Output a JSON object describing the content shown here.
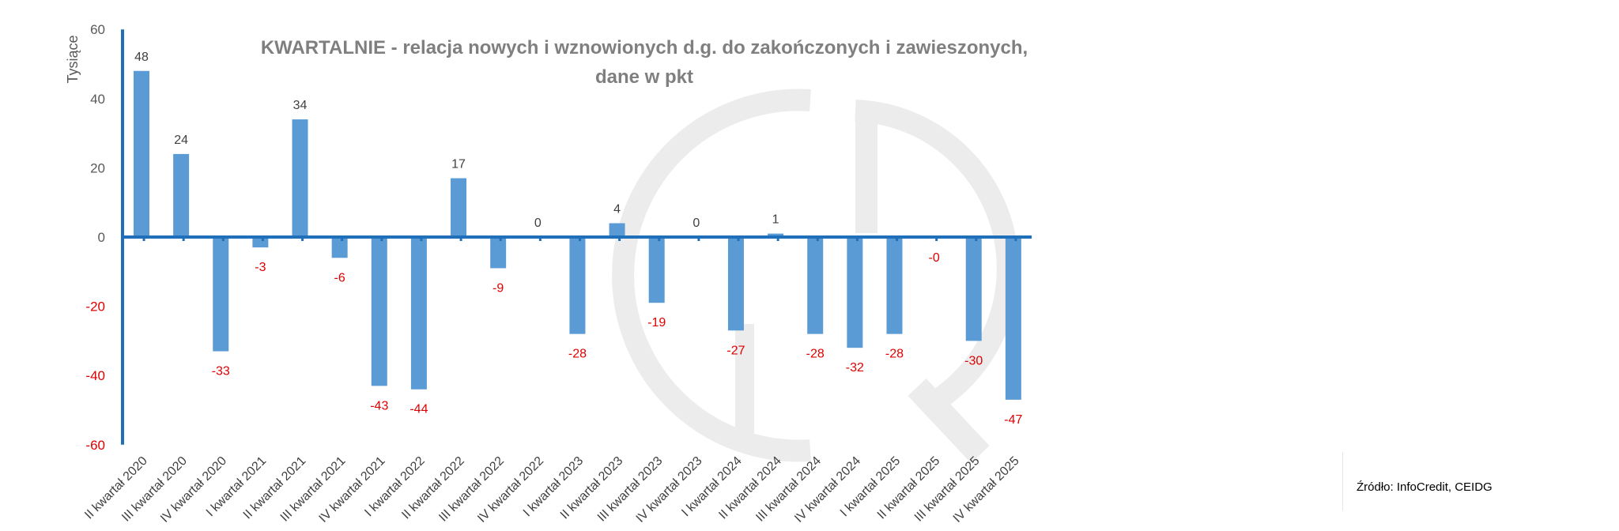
{
  "source_text": "Źródło: InfoCredit, CEIDG",
  "chart_data": {
    "type": "bar",
    "title_lines": [
      "KWARTALNIE - relacja nowych i wznowionych d.g. do zakończonych i zawieszonych,",
      "dane w pkt"
    ],
    "ylabel": "Tysiące",
    "xlabel": "",
    "ylim": [
      -60,
      60
    ],
    "yticks": [
      60,
      40,
      20,
      0,
      -20,
      -40,
      -60
    ],
    "grid": false,
    "categories": [
      "II kwartał 2020",
      "III kwartał 2020",
      "IV kwartał 2020",
      "I kwartał 2021",
      "II kwartał 2021",
      "III kwartał 2021",
      "IV kwartał 2021",
      "I kwartał 2022",
      "II kwartał 2022",
      "III kwartał 2022",
      "IV kwartał 2022",
      "I kwartał 2023",
      "II kwartał 2023",
      "III kwartał 2023",
      "IV kwartał 2023",
      "I kwartał 2024",
      "II kwartał 2024",
      "III kwartał 2024",
      "IV kwartał 2024",
      "I kwartał 2025",
      "II kwartał 2025",
      "III kwartał 2025",
      "IV kwartał 2025"
    ],
    "values": [
      48,
      24,
      -33,
      -3,
      34,
      -6,
      -43,
      -44,
      17,
      -9,
      0,
      -28,
      4,
      -19,
      0,
      -27,
      1,
      -28,
      -32,
      -28,
      -0.2,
      -30,
      -47
    ],
    "data_labels": [
      "48",
      "24",
      "-33",
      "-3",
      "34",
      "-6",
      "-43",
      "-44",
      "17",
      "-9",
      "0",
      "-28",
      "4",
      "-19",
      "0",
      "-27",
      "1",
      "-28",
      "-32",
      "-28",
      "-0",
      "-30",
      "-47"
    ],
    "colors": {
      "bar": "#5b9bd5",
      "axis": "#1f6fba",
      "positive_label": "#404040",
      "negative_label": "#e00000",
      "watermark": "#ececec"
    }
  }
}
